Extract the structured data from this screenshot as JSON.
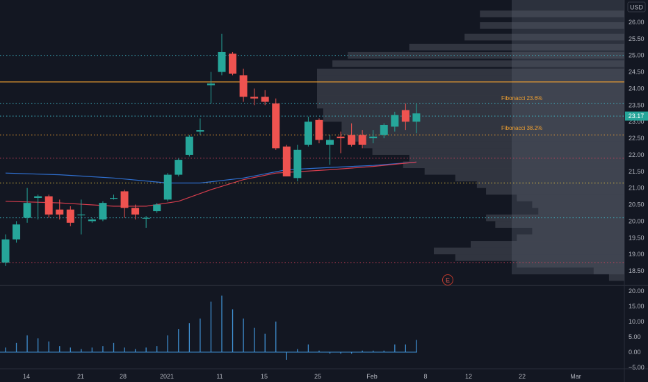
{
  "price_axis": {
    "currency": "USD",
    "current_price": "23.17",
    "ticks": [
      "26.00",
      "25.50",
      "25.00",
      "24.50",
      "24.00",
      "23.50",
      "23.00",
      "22.50",
      "22.00",
      "21.50",
      "21.00",
      "20.50",
      "20.00",
      "19.50",
      "19.00",
      "18.50"
    ]
  },
  "volume_axis": {
    "ticks": [
      "20.00",
      "15.00",
      "10.00",
      "5.00",
      "0.00",
      "−5.00"
    ]
  },
  "time_axis": {
    "ticks": [
      "14",
      "21",
      "28",
      "2021",
      "11",
      "15",
      "25",
      "Feb",
      "8",
      "12",
      "22",
      "Mar"
    ]
  },
  "fibonacci": {
    "label_23": "Fibonacci 23.6%",
    "label_38": "Fibonacci 38.2%"
  },
  "earnings_marker": "E",
  "colors": {
    "background": "#131722",
    "up": "#26a69a",
    "down": "#ef5350",
    "ma_blue": "#2f6fcf",
    "ma_red": "#d63d4d",
    "orange_line": "#f0a030",
    "cyan_dotted": "#3fb8c8",
    "yellow_dotted": "#e8c640",
    "red_dotted": "#d0405a",
    "volume_profile": "#4b4e5a",
    "volume_bar": "#3f8fd0"
  },
  "chart_data": {
    "type": "candlestick",
    "ylim": [
      18.25,
      26.3
    ],
    "candles": [
      {
        "day": 0,
        "o": 18.75,
        "h": 19.6,
        "l": 18.65,
        "c": 19.45
      },
      {
        "day": 1,
        "o": 19.45,
        "h": 20.0,
        "l": 19.35,
        "c": 19.9
      },
      {
        "day": 2,
        "o": 20.1,
        "h": 21.0,
        "l": 19.95,
        "c": 20.55
      },
      {
        "day": 3,
        "o": 20.7,
        "h": 20.8,
        "l": 20.05,
        "c": 20.75
      },
      {
        "day": 4,
        "o": 20.75,
        "h": 20.8,
        "l": 20.1,
        "c": 20.2
      },
      {
        "day": 5,
        "o": 20.35,
        "h": 20.65,
        "l": 20.05,
        "c": 20.2
      },
      {
        "day": 6,
        "o": 20.35,
        "h": 20.45,
        "l": 19.85,
        "c": 19.95
      },
      {
        "day": 7,
        "o": 20.2,
        "h": 20.65,
        "l": 19.6,
        "c": 20.2
      },
      {
        "day": 8,
        "o": 20.0,
        "h": 20.1,
        "l": 19.95,
        "c": 20.05
      },
      {
        "day": 9,
        "o": 20.05,
        "h": 20.6,
        "l": 20.0,
        "c": 20.55
      },
      {
        "day": 10,
        "o": 20.7,
        "h": 20.8,
        "l": 20.65,
        "c": 20.7
      },
      {
        "day": 11,
        "o": 20.9,
        "h": 20.95,
        "l": 20.1,
        "c": 20.4
      },
      {
        "day": 12,
        "o": 20.4,
        "h": 20.5,
        "l": 20.05,
        "c": 20.2
      },
      {
        "day": 13,
        "o": 20.1,
        "h": 20.15,
        "l": 19.8,
        "c": 20.1
      },
      {
        "day": 14,
        "o": 20.3,
        "h": 20.55,
        "l": 20.25,
        "c": 20.5
      },
      {
        "day": 15,
        "o": 20.65,
        "h": 21.45,
        "l": 20.6,
        "c": 21.4
      },
      {
        "day": 16,
        "o": 21.4,
        "h": 21.9,
        "l": 21.35,
        "c": 21.85
      },
      {
        "day": 17,
        "o": 22.0,
        "h": 22.6,
        "l": 21.95,
        "c": 22.55
      },
      {
        "day": 18,
        "o": 22.7,
        "h": 23.1,
        "l": 22.6,
        "c": 22.75
      },
      {
        "day": 19,
        "o": 24.1,
        "h": 24.5,
        "l": 23.55,
        "c": 24.15
      },
      {
        "day": 20,
        "o": 24.5,
        "h": 25.65,
        "l": 24.4,
        "c": 25.1
      },
      {
        "day": 21,
        "o": 25.05,
        "h": 25.1,
        "l": 24.4,
        "c": 24.45
      },
      {
        "day": 22,
        "o": 24.4,
        "h": 24.6,
        "l": 23.6,
        "c": 23.75
      },
      {
        "day": 23,
        "o": 23.75,
        "h": 24.0,
        "l": 23.5,
        "c": 23.7
      },
      {
        "day": 24,
        "o": 23.75,
        "h": 23.95,
        "l": 23.5,
        "c": 23.6
      },
      {
        "day": 25,
        "o": 23.55,
        "h": 23.7,
        "l": 22.15,
        "c": 22.2
      },
      {
        "day": 26,
        "o": 22.25,
        "h": 22.3,
        "l": 21.35,
        "c": 21.35
      },
      {
        "day": 27,
        "o": 21.3,
        "h": 22.3,
        "l": 21.2,
        "c": 22.15
      },
      {
        "day": 28,
        "o": 22.3,
        "h": 23.15,
        "l": 22.25,
        "c": 23.0
      },
      {
        "day": 29,
        "o": 23.05,
        "h": 23.1,
        "l": 22.35,
        "c": 22.45
      },
      {
        "day": 30,
        "o": 22.3,
        "h": 22.6,
        "l": 21.7,
        "c": 22.45
      },
      {
        "day": 31,
        "o": 22.55,
        "h": 22.7,
        "l": 22.05,
        "c": 22.5
      },
      {
        "day": 32,
        "o": 22.6,
        "h": 22.95,
        "l": 22.25,
        "c": 22.3
      },
      {
        "day": 33,
        "o": 22.6,
        "h": 22.75,
        "l": 22.2,
        "c": 22.3
      },
      {
        "day": 34,
        "o": 22.5,
        "h": 22.75,
        "l": 22.35,
        "c": 22.55
      },
      {
        "day": 35,
        "o": 22.6,
        "h": 22.95,
        "l": 22.5,
        "c": 22.9
      },
      {
        "day": 36,
        "o": 22.85,
        "h": 23.3,
        "l": 22.7,
        "c": 23.2
      },
      {
        "day": 37,
        "o": 23.35,
        "h": 23.55,
        "l": 22.75,
        "c": 23.0
      },
      {
        "day": 38,
        "o": 23.0,
        "h": 23.55,
        "l": 22.65,
        "c": 23.25
      }
    ],
    "ma_blue": [
      {
        "day": 0,
        "v": 21.45
      },
      {
        "day": 5,
        "v": 21.4
      },
      {
        "day": 10,
        "v": 21.3
      },
      {
        "day": 15,
        "v": 21.15
      },
      {
        "day": 18,
        "v": 21.15
      },
      {
        "day": 22,
        "v": 21.3
      },
      {
        "day": 26,
        "v": 21.55
      },
      {
        "day": 30,
        "v": 21.62
      },
      {
        "day": 34,
        "v": 21.68
      },
      {
        "day": 38,
        "v": 21.78
      }
    ],
    "ma_red": [
      {
        "day": 0,
        "v": 20.6
      },
      {
        "day": 5,
        "v": 20.55
      },
      {
        "day": 10,
        "v": 20.45
      },
      {
        "day": 13,
        "v": 20.45
      },
      {
        "day": 16,
        "v": 20.6
      },
      {
        "day": 19,
        "v": 20.95
      },
      {
        "day": 22,
        "v": 21.25
      },
      {
        "day": 25,
        "v": 21.45
      },
      {
        "day": 30,
        "v": 21.55
      },
      {
        "day": 34,
        "v": 21.65
      },
      {
        "day": 38,
        "v": 21.78
      }
    ],
    "horizontal_lines": [
      {
        "price": 25.0,
        "style": "dotted",
        "color": "#3fb8c8"
      },
      {
        "price": 24.2,
        "style": "solid",
        "color": "#f0a030"
      },
      {
        "price": 23.55,
        "style": "dotted",
        "color": "#3fb8c8"
      },
      {
        "price": 23.17,
        "style": "dotted",
        "color": "#3fb8c8"
      },
      {
        "price": 22.6,
        "style": "dotted",
        "color": "#f0a030"
      },
      {
        "price": 21.9,
        "style": "dotted",
        "color": "#d0405a"
      },
      {
        "price": 21.15,
        "style": "dotted",
        "color": "#e8c640"
      },
      {
        "price": 20.1,
        "style": "dotted",
        "color": "#3fb8c8"
      },
      {
        "price": 18.75,
        "style": "dotted",
        "color": "#d0405a"
      }
    ],
    "volume": [
      {
        "day": 0,
        "v": 1.5
      },
      {
        "day": 1,
        "v": 3.0
      },
      {
        "day": 2,
        "v": 5.5
      },
      {
        "day": 3,
        "v": 4.5
      },
      {
        "day": 4,
        "v": 3.5
      },
      {
        "day": 5,
        "v": 2.0
      },
      {
        "day": 6,
        "v": 1.5
      },
      {
        "day": 7,
        "v": 1.0
      },
      {
        "day": 8,
        "v": 1.5
      },
      {
        "day": 9,
        "v": 2.0
      },
      {
        "day": 10,
        "v": 3.0
      },
      {
        "day": 11,
        "v": 1.5
      },
      {
        "day": 12,
        "v": 1.0
      },
      {
        "day": 13,
        "v": 1.5
      },
      {
        "day": 14,
        "v": 2.0
      },
      {
        "day": 15,
        "v": 5.5
      },
      {
        "day": 16,
        "v": 7.5
      },
      {
        "day": 17,
        "v": 9.5
      },
      {
        "day": 18,
        "v": 11.0
      },
      {
        "day": 19,
        "v": 16.5
      },
      {
        "day": 20,
        "v": 18.5
      },
      {
        "day": 21,
        "v": 14.0
      },
      {
        "day": 22,
        "v": 11.0
      },
      {
        "day": 23,
        "v": 8.0
      },
      {
        "day": 24,
        "v": 6.0
      },
      {
        "day": 25,
        "v": 10.0
      },
      {
        "day": 26,
        "v": -2.5
      },
      {
        "day": 27,
        "v": 1.0
      },
      {
        "day": 28,
        "v": 2.5
      },
      {
        "day": 29,
        "v": 0.5
      },
      {
        "day": 30,
        "v": -0.5
      },
      {
        "day": 31,
        "v": -0.5
      },
      {
        "day": 32,
        "v": -0.5
      },
      {
        "day": 33,
        "v": 0.5
      },
      {
        "day": 34,
        "v": 0.5
      },
      {
        "day": 35,
        "v": 0.5
      },
      {
        "day": 36,
        "v": 2.5
      },
      {
        "day": 37,
        "v": 2.5
      },
      {
        "day": 38,
        "v": 4.0
      }
    ],
    "volume_ylim": [
      -5.5,
      20.5
    ],
    "volume_profile": [
      {
        "price": 26.25,
        "w": 0.47
      },
      {
        "price": 25.9,
        "w": 0.47
      },
      {
        "price": 25.55,
        "w": 0.52
      },
      {
        "price": 25.25,
        "w": 0.7
      },
      {
        "price": 25.0,
        "w": 0.9
      },
      {
        "price": 24.75,
        "w": 0.95
      },
      {
        "price": 24.5,
        "w": 1.0
      },
      {
        "price": 24.3,
        "w": 1.0
      },
      {
        "price": 24.1,
        "w": 1.0
      },
      {
        "price": 23.9,
        "w": 1.0
      },
      {
        "price": 23.7,
        "w": 1.0
      },
      {
        "price": 23.5,
        "w": 1.0
      },
      {
        "price": 23.3,
        "w": 0.98
      },
      {
        "price": 23.1,
        "w": 0.98
      },
      {
        "price": 22.9,
        "w": 0.92
      },
      {
        "price": 22.7,
        "w": 0.92
      },
      {
        "price": 22.5,
        "w": 0.9
      },
      {
        "price": 22.3,
        "w": 0.85
      },
      {
        "price": 22.1,
        "w": 0.82
      },
      {
        "price": 21.9,
        "w": 0.7
      },
      {
        "price": 21.7,
        "w": 0.72
      },
      {
        "price": 21.5,
        "w": 0.65
      },
      {
        "price": 21.3,
        "w": 0.55
      },
      {
        "price": 21.1,
        "w": 0.48
      },
      {
        "price": 20.9,
        "w": 0.45
      },
      {
        "price": 20.7,
        "w": 0.35
      },
      {
        "price": 20.5,
        "w": 0.3
      },
      {
        "price": 20.3,
        "w": 0.28
      },
      {
        "price": 20.1,
        "w": 0.45
      },
      {
        "price": 19.9,
        "w": 0.42
      },
      {
        "price": 19.7,
        "w": 0.3
      },
      {
        "price": 19.5,
        "w": 0.35
      },
      {
        "price": 19.3,
        "w": 0.5
      },
      {
        "price": 19.1,
        "w": 0.62
      },
      {
        "price": 18.9,
        "w": 0.55
      },
      {
        "price": 18.7,
        "w": 0.35
      },
      {
        "price": 18.5,
        "w": 0.1
      },
      {
        "price": 18.3,
        "w": 0.05
      }
    ]
  }
}
